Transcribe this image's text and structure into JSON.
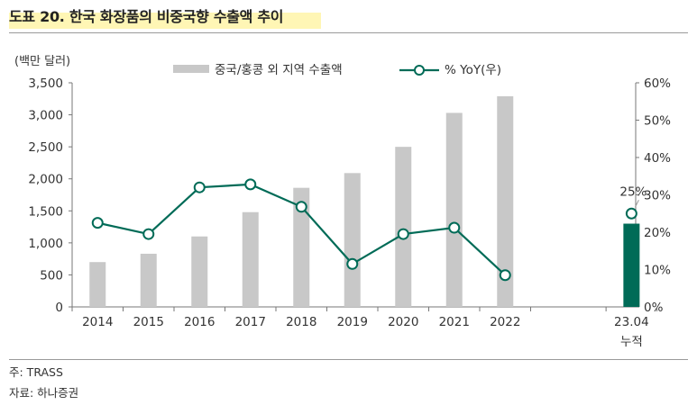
{
  "title": "도표 20. 한국 화장품의 비중국향 수출액 추이",
  "unit_label": "(백만 달러)",
  "note": "주: TRASS",
  "source": "자료: 하나증권",
  "colors": {
    "bar": "#c8c8c8",
    "bar_highlight": "#006b57",
    "line": "#006b57"
  },
  "chart_data": {
    "type": "bar",
    "categories": [
      "2014",
      "2015",
      "2016",
      "2017",
      "2018",
      "2019",
      "2020",
      "2021",
      "2022",
      "23.04"
    ],
    "category_sublabels": [
      "",
      "",
      "",
      "",
      "",
      "",
      "",
      "",
      "",
      "누적"
    ],
    "series": [
      {
        "name": "중국/홍콩 외 지역 수출액",
        "type": "bar",
        "axis": "left",
        "values": [
          700,
          830,
          1100,
          1480,
          1860,
          2090,
          2500,
          3030,
          3290,
          1300
        ],
        "highlight_index": 9
      },
      {
        "name": "% YoY(우)",
        "type": "line",
        "axis": "right",
        "values": [
          22.5,
          19.5,
          32,
          32.8,
          26.8,
          11.5,
          19.5,
          21.2,
          8.5,
          25
        ],
        "segments": [
          [
            0,
            8
          ]
        ],
        "standalone_points": [
          9
        ]
      }
    ],
    "y_left": {
      "lim": [
        0,
        3500
      ],
      "ticks": [
        "0",
        "500",
        "1,000",
        "1,500",
        "2,000",
        "2,500",
        "3,000",
        "3,500"
      ]
    },
    "y_right": {
      "lim": [
        0,
        60
      ],
      "ticks": [
        "0%",
        "10%",
        "20%",
        "30%",
        "40%",
        "50%",
        "60%"
      ]
    },
    "annotations": [
      {
        "index": 9,
        "text": "25%"
      }
    ],
    "legend_position": "top-center",
    "grid": false
  }
}
